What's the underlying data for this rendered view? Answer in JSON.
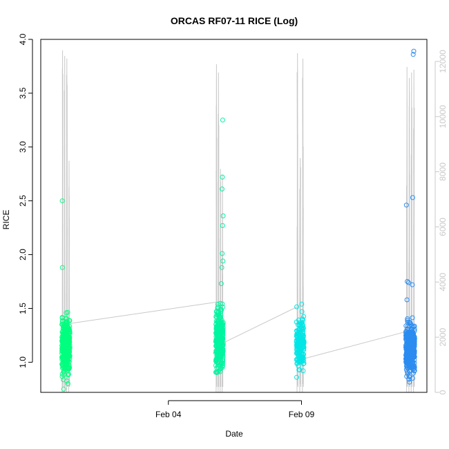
{
  "chart_data": {
    "type": "scatter",
    "title": "ORCAS RF07-11 RICE (Log)",
    "xlabel": "Date",
    "ylabel": "RICE",
    "xlim": [
      "2016-01-30T05:00",
      "2016-02-13T17:00"
    ],
    "ylim": [
      0.72,
      4.0
    ],
    "y_ticks": [
      "1.0",
      "1.5",
      "2.0",
      "2.5",
      "3.0",
      "3.5",
      "4.0"
    ],
    "x_ticks": [
      {
        "date": "2016-02-04T00:00",
        "label": "Feb 04"
      },
      {
        "date": "2016-02-09T00:00",
        "label": "Feb 09"
      }
    ],
    "y2_ticks": [
      "0",
      "2000",
      "4000",
      "6000",
      "8000",
      "10000",
      "12000"
    ],
    "y2lim": [
      0,
      12800
    ],
    "secondary_series": {
      "color": "#c8c8c8",
      "description_of_axis": "right axis (grey)",
      "flights": [
        {
          "start": "2016-01-30T23:40",
          "end": "2016-01-31T07:30",
          "peaks": [
            12400,
            12200,
            12100,
            8400
          ]
        },
        {
          "start": "2016-02-05T18:30",
          "end": "2016-02-06T01:40",
          "peaks": [
            11900,
            11600,
            8100,
            7900
          ]
        },
        {
          "start": "2016-02-08T19:10",
          "end": "2016-02-09T02:30",
          "peaks": [
            12300,
            8500,
            12100
          ]
        },
        {
          "start": "2016-02-12T22:00",
          "end": "2016-02-13T06:20",
          "peaks": [
            11800,
            11400,
            11600,
            11700
          ]
        }
      ],
      "connectors": [
        {
          "from": [
            "2016-01-31T07:30",
            2500
          ],
          "to": [
            "2016-02-06T00:10",
            3300
          ]
        },
        {
          "from": [
            "2016-02-06T01:40",
            1800
          ],
          "to": [
            "2016-02-08T20:00",
            3100
          ]
        },
        {
          "from": [
            "2016-02-09T00:10",
            1200
          ],
          "to": [
            "2016-02-12T22:00",
            2200
          ]
        }
      ]
    },
    "series": [
      {
        "color": "#00ff7f",
        "x_range": [
          "2016-01-31T00:00",
          "2016-01-31T07:10"
        ],
        "y_range": [
          0.75,
          1.52
        ],
        "n_points": 320,
        "outliers": [
          {
            "x": "2016-01-31T00:20",
            "y": 2.5
          },
          {
            "x": "2016-01-31T00:30",
            "y": 1.88
          },
          {
            "x": "2016-01-31T01:40",
            "y": 0.75
          }
        ]
      },
      {
        "color": "#00f5a0",
        "x_range": [
          "2016-02-05T18:40",
          "2016-02-06T01:30"
        ],
        "y_range": [
          0.8,
          1.62
        ],
        "n_points": 300,
        "outliers": [
          {
            "x": "2016-02-06T01:00",
            "y": 3.25
          },
          {
            "x": "2016-02-06T00:40",
            "y": 2.72
          },
          {
            "x": "2016-02-06T00:20",
            "y": 2.61
          },
          {
            "x": "2016-02-06T01:20",
            "y": 2.36
          },
          {
            "x": "2016-02-06T00:50",
            "y": 2.27
          },
          {
            "x": "2016-02-06T00:30",
            "y": 2.01
          },
          {
            "x": "2016-02-06T01:10",
            "y": 1.94
          },
          {
            "x": "2016-02-06T00:10",
            "y": 1.88
          },
          {
            "x": "2016-02-05T23:40",
            "y": 1.73
          }
        ]
      },
      {
        "color": "#00e5e5",
        "x_range": [
          "2016-02-08T19:20",
          "2016-02-09T02:20"
        ],
        "y_range": [
          0.86,
          1.55
        ],
        "n_points": 180,
        "outliers": [
          {
            "x": "2016-02-08T19:40",
            "y": 0.86
          },
          {
            "x": "2016-02-09T01:30",
            "y": 0.92
          },
          {
            "x": "2016-02-09T00:10",
            "y": 1.54
          }
        ]
      },
      {
        "color": "#2b8cf0",
        "x_range": [
          "2016-02-12T22:00",
          "2016-02-13T06:00"
        ],
        "y_range": [
          0.78,
          1.45
        ],
        "n_points": 360,
        "outliers": [
          {
            "x": "2016-02-13T05:10",
            "y": 3.89
          },
          {
            "x": "2016-02-13T04:40",
            "y": 3.86
          },
          {
            "x": "2016-02-13T04:10",
            "y": 2.53
          },
          {
            "x": "2016-02-12T22:30",
            "y": 2.46
          },
          {
            "x": "2016-02-12T23:20",
            "y": 1.75
          },
          {
            "x": "2016-02-13T00:30",
            "y": 1.74
          },
          {
            "x": "2016-02-13T03:50",
            "y": 1.72
          },
          {
            "x": "2016-02-12T23:00",
            "y": 1.58
          }
        ]
      }
    ]
  }
}
